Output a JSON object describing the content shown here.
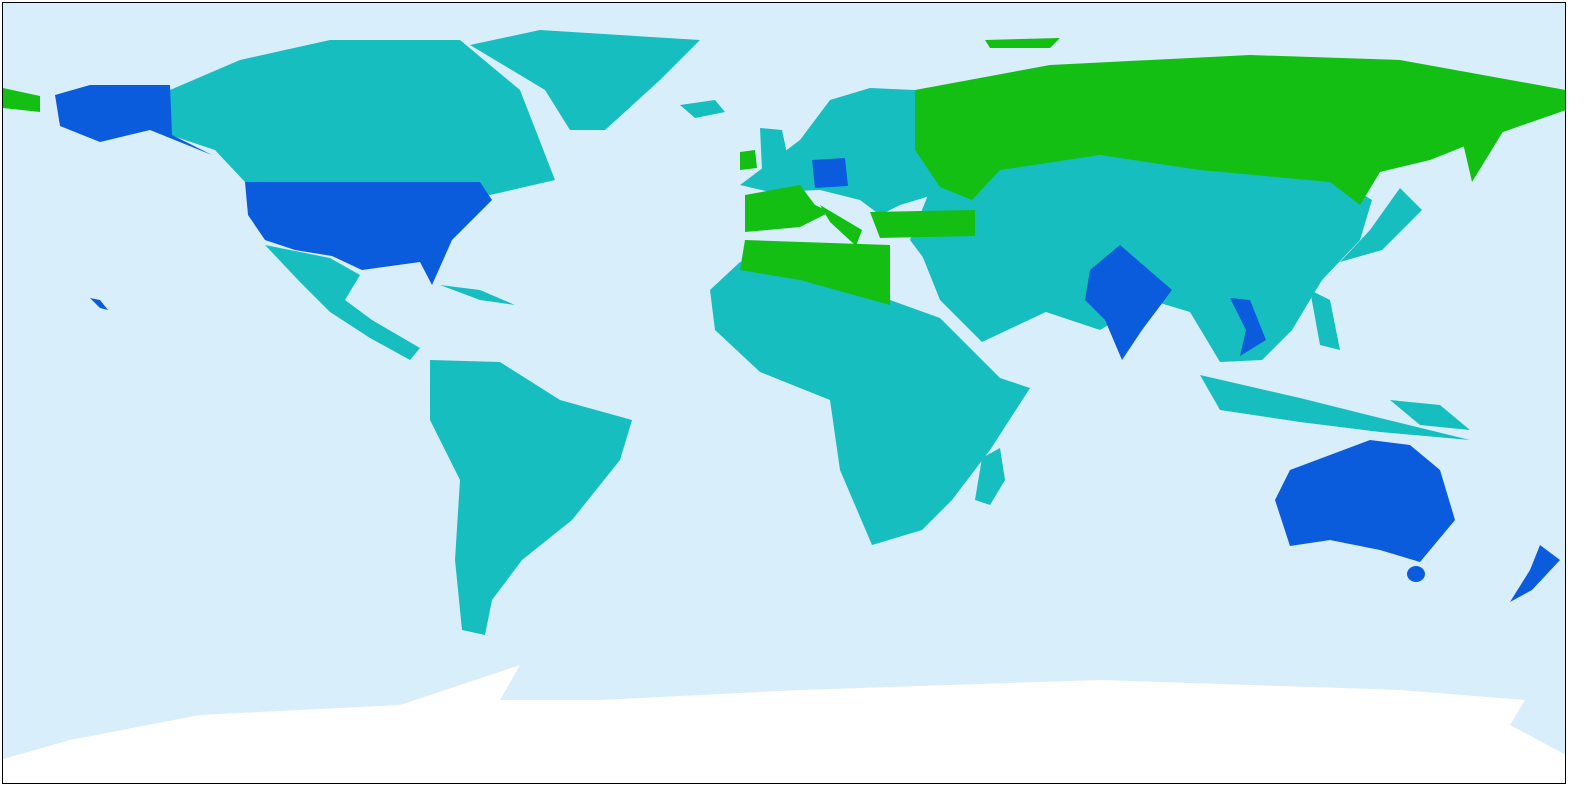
{
  "map": {
    "projection": "equirectangular",
    "colors": {
      "ocean": "#d9eefb",
      "category_teal": "#17bec0",
      "category_blue": "#0a5cdc",
      "category_green": "#13bf13",
      "antarctica": "#ffffff",
      "border": "#000000"
    }
  }
}
